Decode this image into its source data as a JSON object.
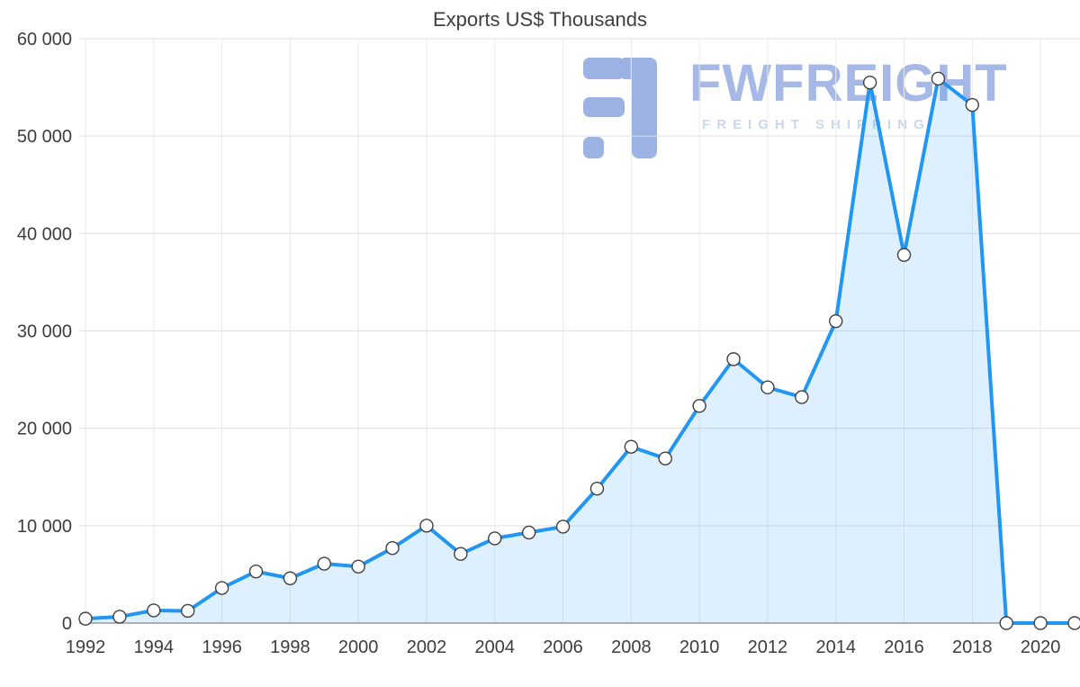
{
  "chart_data": {
    "type": "area",
    "title": "Exports US$ Thousands",
    "x": [
      1992,
      1993,
      1994,
      1995,
      1996,
      1997,
      1998,
      1999,
      2000,
      2001,
      2002,
      2003,
      2004,
      2005,
      2006,
      2007,
      2008,
      2009,
      2010,
      2011,
      2012,
      2013,
      2014,
      2015,
      2016,
      2017,
      2018,
      2019,
      2020,
      2021
    ],
    "values": [
      450,
      650,
      1300,
      1250,
      3600,
      5300,
      4600,
      6100,
      5800,
      7700,
      10000,
      7100,
      8700,
      9300,
      9900,
      13800,
      18100,
      16900,
      22300,
      27100,
      24200,
      23200,
      31000,
      55500,
      37800,
      55900,
      53200,
      0,
      0,
      0
    ],
    "series_name": "Exports US$ Thousands",
    "xlim": [
      1992,
      2021
    ],
    "ylim": [
      0,
      60000
    ],
    "yticks": [
      0,
      10000,
      20000,
      30000,
      40000,
      50000,
      60000
    ],
    "ytick_labels": [
      "0",
      "10 000",
      "20 000",
      "30 000",
      "40 000",
      "50 000",
      "60 000"
    ],
    "xticks": [
      1992,
      1994,
      1996,
      1998,
      2000,
      2002,
      2004,
      2006,
      2008,
      2010,
      2012,
      2014,
      2016,
      2018,
      2020
    ],
    "grid": true,
    "legend": "none",
    "colors": {
      "line": "#2196f3",
      "area": "rgba(33,150,243,0.15)",
      "marker_fill": "#ffffff",
      "marker_stroke": "#404040",
      "grid_h": "#e0e0e0",
      "grid_v": "#eaeaea",
      "axis": "#9b9b9b",
      "tick_text": "#3d3d3d",
      "title_text": "#3c4043"
    }
  },
  "watermark": {
    "brand": "FWFREIGHT",
    "tagline": "FREIGHT SHIPPING",
    "brand_color": "#a2b5e4",
    "tagline_color": "#c9d5ef",
    "logo_color": "#97aee2"
  }
}
